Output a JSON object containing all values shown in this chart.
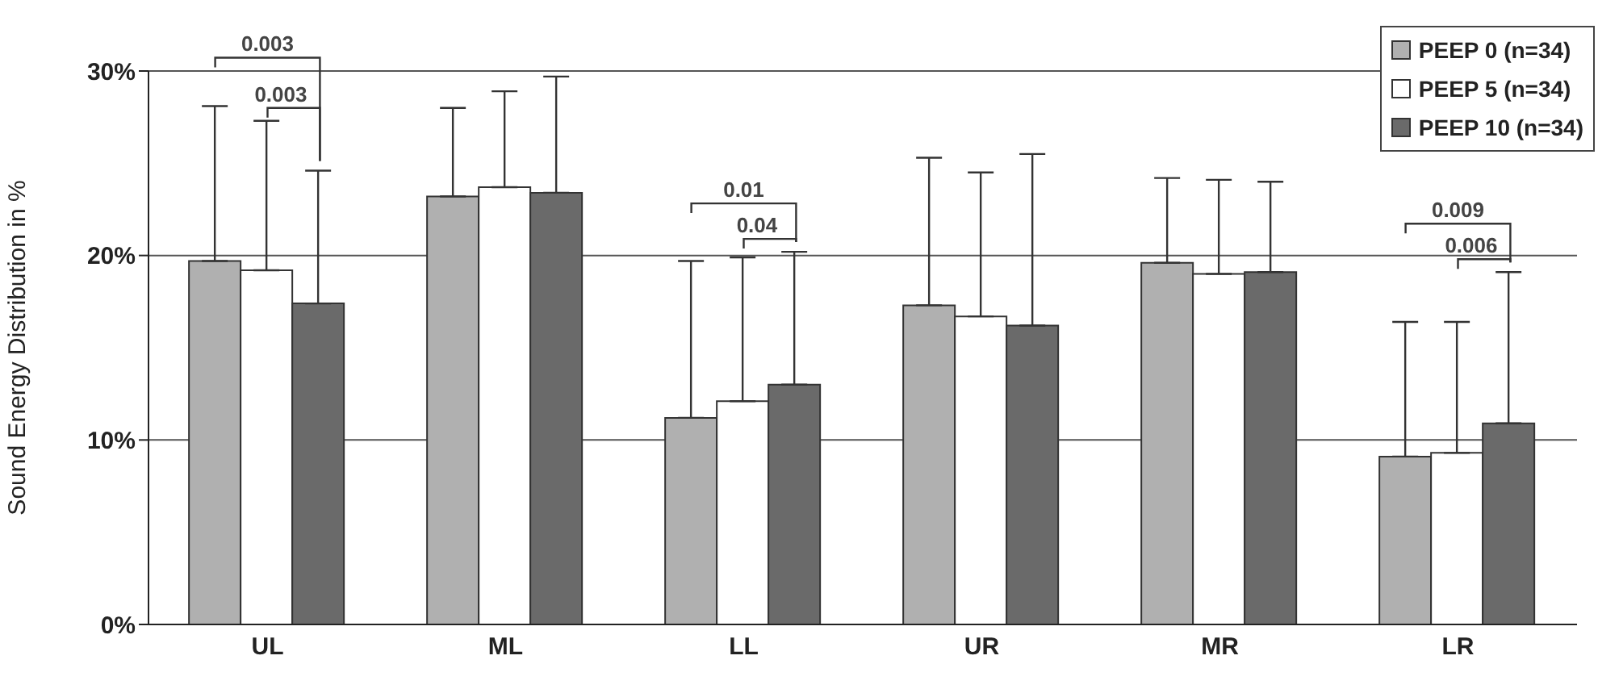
{
  "chart_data": {
    "type": "bar",
    "ylabel": "Sound Energy Distribution in %",
    "categories": [
      "UL",
      "ML",
      "LL",
      "UR",
      "MR",
      "LR"
    ],
    "series": [
      {
        "name": "PEEP 0 (n=34)",
        "color": "#b0b0b0",
        "values": [
          19.7,
          23.2,
          11.2,
          17.3,
          19.6,
          9.1
        ],
        "errors": [
          [
            19.7,
            28.1
          ],
          [
            23.2,
            28.0
          ],
          [
            11.2,
            19.7
          ],
          [
            17.3,
            25.3
          ],
          [
            19.6,
            24.2
          ],
          [
            9.1,
            16.4
          ]
        ]
      },
      {
        "name": "PEEP 5 (n=34)",
        "color": "#ffffff",
        "values": [
          19.2,
          23.7,
          12.1,
          16.7,
          19.0,
          9.3
        ],
        "errors": [
          [
            19.2,
            27.3
          ],
          [
            23.7,
            28.9
          ],
          [
            12.1,
            19.9
          ],
          [
            16.7,
            24.5
          ],
          [
            19.0,
            24.1
          ],
          [
            9.3,
            16.4
          ]
        ]
      },
      {
        "name": "PEEP 10 (n=34)",
        "color": "#6a6a6a",
        "values": [
          17.4,
          23.4,
          13.0,
          16.2,
          19.1,
          10.9
        ],
        "errors": [
          [
            17.4,
            24.6
          ],
          [
            23.4,
            29.7
          ],
          [
            13.0,
            20.2
          ],
          [
            16.2,
            25.5
          ],
          [
            19.1,
            24.0
          ],
          [
            10.9,
            19.1
          ]
        ]
      }
    ],
    "ylim": [
      0,
      30
    ],
    "yticks": [
      {
        "value": 0,
        "label": "0%"
      },
      {
        "value": 10,
        "label": "10%"
      },
      {
        "value": 20,
        "label": "20%"
      },
      {
        "value": 30,
        "label": "30%"
      }
    ],
    "grid": "y",
    "legend": "top right",
    "annotations": [
      "0.003",
      "0.003",
      "0.01",
      "0.04",
      "0.009",
      "0.006"
    ]
  }
}
